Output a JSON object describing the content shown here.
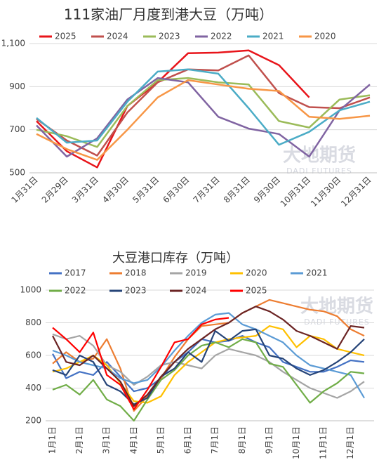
{
  "chart_data": [
    {
      "type": "line",
      "title": "111家油厂月度到港大豆（万吨）",
      "categories": [
        "1月31日",
        "2月29日",
        "3月31日",
        "4月30日",
        "5月31日",
        "6月30日",
        "7月31日",
        "8月31日",
        "9月30日",
        "10月31日",
        "11月30日",
        "12月31日"
      ],
      "series": [
        {
          "name": "2025",
          "color": "#e8141a",
          "values": [
            740,
            600,
            525,
            810,
            920,
            1055,
            1058,
            1068,
            1000,
            850,
            null,
            null
          ]
        },
        {
          "name": "2024",
          "color": "#c0504d",
          "values": [
            750,
            650,
            580,
            780,
            920,
            980,
            975,
            1045,
            870,
            805,
            800,
            850
          ]
        },
        {
          "name": "2023",
          "color": "#9bbb59",
          "values": [
            700,
            670,
            620,
            810,
            930,
            940,
            920,
            910,
            740,
            710,
            840,
            860
          ]
        },
        {
          "name": "2022",
          "color": "#8064a2",
          "values": [
            720,
            575,
            660,
            840,
            940,
            920,
            760,
            705,
            680,
            575,
            790,
            910
          ]
        },
        {
          "name": "2021",
          "color": "#4bacc6",
          "values": [
            755,
            640,
            650,
            830,
            970,
            980,
            960,
            800,
            630,
            690,
            790,
            830
          ]
        },
        {
          "name": "2020",
          "color": "#f79646",
          "values": [
            680,
            610,
            560,
            700,
            850,
            930,
            910,
            890,
            880,
            760,
            750,
            765
          ]
        }
      ],
      "ylim": [
        500,
        1100
      ],
      "yticks": [
        500,
        700,
        900,
        {
          "value": 1100,
          "label": "1,100"
        }
      ],
      "grid": true,
      "watermark": {
        "text": "大地期货",
        "subtext": "DADI FUTURES"
      }
    },
    {
      "type": "line",
      "title": "大豆港口库存（万吨）",
      "categories": [
        "1月1日",
        null,
        "2月1日",
        null,
        "3月1日",
        null,
        "4月1日",
        null,
        "5月1日",
        null,
        "6月1日",
        null,
        "7月1日",
        null,
        "8月1日",
        null,
        "9月1日",
        null,
        "10月1日",
        null,
        "11月1日",
        null,
        "12月1日",
        null
      ],
      "series": [
        {
          "name": "2017",
          "color": "#4472c4",
          "values": [
            610,
            460,
            500,
            480,
            560,
            470,
            380,
            400,
            460,
            560,
            620,
            700,
            680,
            690,
            720,
            680,
            650,
            560,
            530,
            500,
            500,
            530,
            570,
            560
          ]
        },
        {
          "name": "2018",
          "color": "#ed7d31",
          "values": [
            550,
            620,
            560,
            580,
            700,
            520,
            260,
            350,
            460,
            590,
            700,
            780,
            790,
            800,
            860,
            900,
            940,
            920,
            900,
            880,
            870,
            840,
            760,
            720
          ]
        },
        {
          "name": "2019",
          "color": "#a5a5a5",
          "values": [
            730,
            700,
            720,
            660,
            540,
            500,
            420,
            470,
            540,
            560,
            540,
            520,
            600,
            640,
            620,
            600,
            560,
            500,
            450,
            400,
            370,
            340,
            380,
            440
          ]
        },
        {
          "name": "2020",
          "color": "#ffc000",
          "values": [
            500,
            520,
            560,
            600,
            540,
            430,
            320,
            310,
            350,
            480,
            560,
            620,
            680,
            700,
            710,
            720,
            780,
            760,
            650,
            720,
            700,
            640,
            620,
            600
          ]
        },
        {
          "name": "2021",
          "color": "#5b9bd5",
          "values": [
            630,
            600,
            560,
            540,
            520,
            460,
            430,
            450,
            530,
            630,
            720,
            800,
            850,
            860,
            790,
            760,
            720,
            680,
            600,
            540,
            520,
            500,
            480,
            340
          ]
        },
        {
          "name": "2022",
          "color": "#70ad47",
          "values": [
            390,
            420,
            360,
            450,
            330,
            290,
            200,
            330,
            450,
            510,
            600,
            660,
            680,
            650,
            700,
            680,
            550,
            530,
            420,
            310,
            380,
            430,
            500,
            490
          ]
        },
        {
          "name": "2023",
          "color": "#264478",
          "values": [
            510,
            480,
            600,
            560,
            420,
            380,
            300,
            340,
            470,
            520,
            620,
            560,
            750,
            690,
            750,
            760,
            600,
            580,
            520,
            480,
            510,
            560,
            620,
            700
          ]
        },
        {
          "name": "2024",
          "color": "#6b2424",
          "values": [
            720,
            560,
            540,
            600,
            520,
            440,
            290,
            360,
            470,
            560,
            640,
            700,
            760,
            800,
            860,
            900,
            870,
            820,
            750,
            720,
            680,
            640,
            780,
            770
          ]
        },
        {
          "name": "2025",
          "color": "#ff0000",
          "values": [
            770,
            700,
            620,
            740,
            480,
            420,
            270,
            390,
            530,
            680,
            700,
            790,
            820,
            830,
            null,
            null,
            null,
            null,
            null,
            null,
            null,
            null,
            null,
            null
          ]
        }
      ],
      "ylim": [
        200,
        1000
      ],
      "yticks": [
        200,
        400,
        600,
        800,
        1000
      ],
      "grid": true,
      "watermark": {
        "text": "大地期货",
        "subtext": "DADI FUTURES"
      }
    }
  ]
}
